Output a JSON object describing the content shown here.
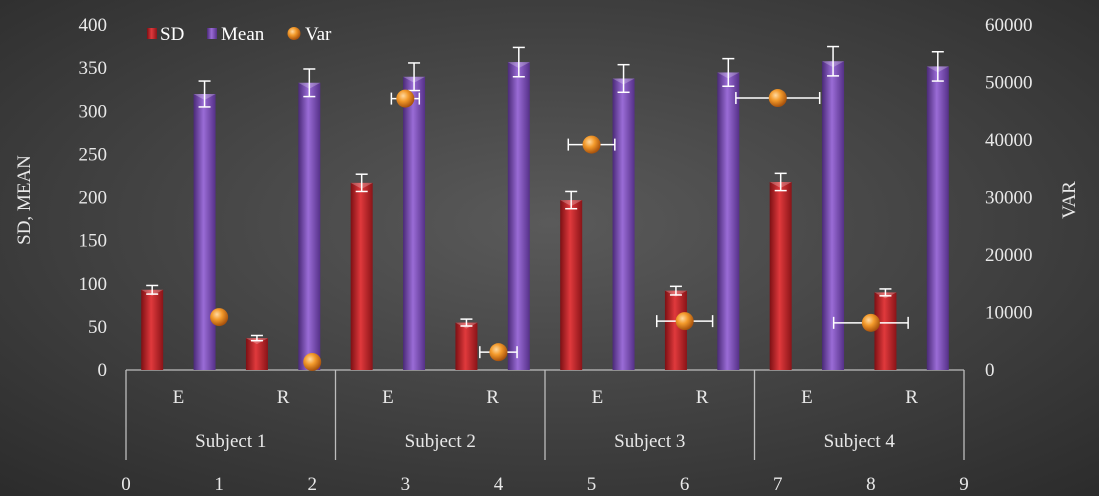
{
  "chart_data": {
    "type": "bar",
    "title": "",
    "groups": [
      "Subject 1",
      "Subject 2",
      "Subject 3",
      "Subject 4"
    ],
    "categories": [
      "E",
      "R",
      "E",
      "R",
      "E",
      "R",
      "E",
      "R"
    ],
    "ylabel": "SD, MEAN",
    "y2label": "VAR",
    "ylim": [
      0,
      400
    ],
    "yticks": [
      0,
      50,
      100,
      150,
      200,
      250,
      300,
      350,
      400
    ],
    "y2lim": [
      0,
      60000
    ],
    "y2ticks": [
      0,
      10000,
      20000,
      30000,
      40000,
      50000,
      60000
    ],
    "xlim": [
      0,
      9
    ],
    "xticks": [
      0,
      1,
      2,
      3,
      4,
      5,
      6,
      7,
      8,
      9
    ],
    "legend_position": "top-left",
    "grid": false,
    "series": [
      {
        "name": "SD",
        "type": "bar",
        "axis": "left",
        "color": "#c0282d",
        "values": [
          93,
          37,
          217,
          55,
          197,
          92,
          218,
          90
        ],
        "error": [
          5,
          3,
          10,
          4,
          10,
          5,
          10,
          4
        ]
      },
      {
        "name": "Mean",
        "type": "bar",
        "axis": "left",
        "color": "#7e4fb8",
        "values": [
          320,
          333,
          340,
          357,
          338,
          345,
          358,
          352
        ],
        "error": [
          15,
          16,
          16,
          17,
          16,
          16,
          17,
          17
        ]
      },
      {
        "name": "Var",
        "type": "scatter",
        "axis": "right",
        "color": "#f28c1f",
        "x": [
          1.0,
          2.0,
          3.0,
          4.0,
          5.0,
          6.0,
          7.0,
          8.0
        ],
        "values": [
          9200,
          1400,
          47200,
          3100,
          39200,
          8500,
          47300,
          8200
        ],
        "x_error": [
          0,
          0,
          0.15,
          0.2,
          0.25,
          0.3,
          0.45,
          0.4
        ],
        "y_error": [
          0,
          0,
          0,
          0,
          0,
          0,
          0,
          0
        ]
      }
    ]
  }
}
